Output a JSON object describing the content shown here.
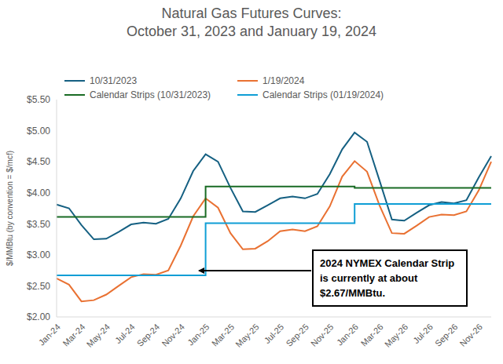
{
  "chart_data": {
    "type": "line",
    "title": "Natural Gas Futures Curves:",
    "subtitle": "October 31, 2023 and January 19, 2024",
    "y_label": "$/MMBtu (by convention = $/mcf)",
    "annotation": "2024 NYMEX Calendar Strip is currently at about $2.67/MMBtu.",
    "categories": [
      "Jan-24",
      null,
      "Mar-24",
      null,
      "May-24",
      null,
      "Jul-24",
      null,
      "Sep-24",
      null,
      "Nov-24",
      null,
      "Jan-25",
      null,
      "Mar-25",
      null,
      "May-25",
      null,
      "Jul-25",
      null,
      "Sep-25",
      null,
      "Nov-25",
      null,
      "Jan-26",
      null,
      "Mar-26",
      null,
      "May-26",
      null,
      "Jul-26",
      null,
      "Sep-26",
      null,
      "Nov-26",
      null
    ],
    "series": [
      {
        "name": "10/31/2023",
        "color": "#156082",
        "line_style": "solid",
        "values": [
          3.81,
          3.75,
          3.48,
          3.25,
          3.26,
          3.37,
          3.49,
          3.52,
          3.5,
          3.58,
          3.91,
          4.35,
          4.62,
          4.5,
          4.08,
          3.7,
          3.69,
          3.8,
          3.91,
          3.94,
          3.91,
          3.98,
          4.3,
          4.7,
          4.97,
          4.82,
          4.2,
          3.57,
          3.55,
          3.68,
          3.8,
          3.85,
          3.83,
          3.88,
          4.25,
          4.59
        ]
      },
      {
        "name": "1/19/2024",
        "color": "#E97132",
        "line_style": "solid",
        "values": [
          2.62,
          2.52,
          2.25,
          2.27,
          2.36,
          2.5,
          2.64,
          2.69,
          2.68,
          2.75,
          3.15,
          3.62,
          3.91,
          3.76,
          3.35,
          3.09,
          3.1,
          3.22,
          3.38,
          3.41,
          3.38,
          3.46,
          3.78,
          4.26,
          4.51,
          4.34,
          3.8,
          3.35,
          3.34,
          3.47,
          3.61,
          3.65,
          3.64,
          3.7,
          4.04,
          4.5
        ]
      },
      {
        "name": "Calendar Strips (10/31/2023)",
        "color": "#196B24",
        "line_style": "step",
        "values": [
          3.61,
          3.61,
          3.61,
          3.61,
          3.61,
          3.61,
          3.61,
          3.61,
          3.61,
          3.61,
          3.61,
          3.61,
          4.1,
          4.1,
          4.1,
          4.1,
          4.1,
          4.1,
          4.1,
          4.1,
          4.1,
          4.1,
          4.1,
          4.1,
          4.08,
          4.08,
          4.08,
          4.08,
          4.08,
          4.08,
          4.08,
          4.08,
          4.08,
          4.08,
          4.08,
          4.08
        ]
      },
      {
        "name": "Calendar Strips (01/19/2024)",
        "color": "#0F9ED5",
        "line_style": "step",
        "values": [
          2.67,
          2.67,
          2.67,
          2.67,
          2.67,
          2.67,
          2.67,
          2.67,
          2.67,
          2.67,
          2.67,
          2.67,
          3.51,
          3.51,
          3.51,
          3.51,
          3.51,
          3.51,
          3.51,
          3.51,
          3.51,
          3.51,
          3.51,
          3.51,
          3.82,
          3.82,
          3.82,
          3.82,
          3.82,
          3.82,
          3.82,
          3.82,
          3.82,
          3.82,
          3.82,
          3.82
        ]
      }
    ],
    "ylim": [
      2,
      5.5
    ],
    "yticks": [
      {
        "value": 2,
        "label": "$2.00"
      },
      {
        "value": 2.5,
        "label": "$2.50"
      },
      {
        "value": 3,
        "label": "$3.00"
      },
      {
        "value": 3.5,
        "label": "$3.50"
      },
      {
        "value": 4,
        "label": "$4.00"
      },
      {
        "value": 4.5,
        "label": "$4.50"
      },
      {
        "value": 5,
        "label": "$5.00"
      },
      {
        "value": 5.5,
        "label": "$5.50"
      }
    ],
    "grid": false,
    "legend": "top-left"
  }
}
